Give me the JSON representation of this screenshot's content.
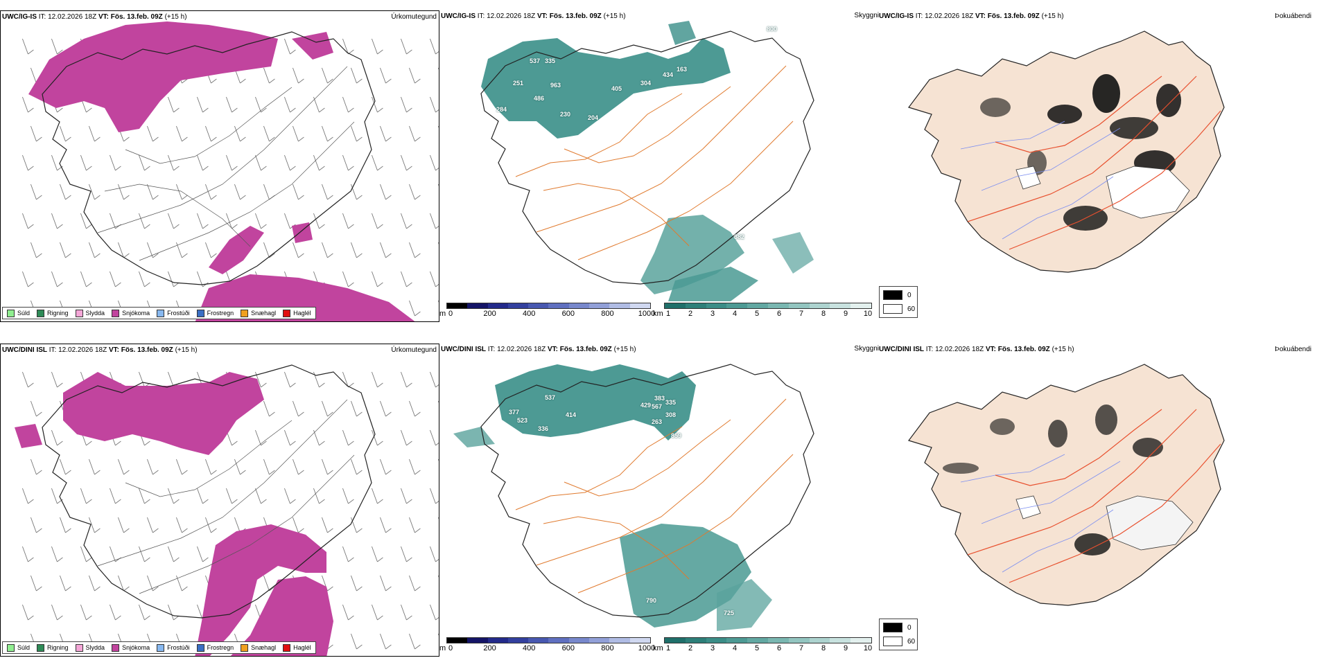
{
  "rows": [
    {
      "model": "UWC/IG-IS",
      "it_label": "IT:",
      "it_value": "12.02.2026 18Z",
      "vt_label": "VT:",
      "vt_value": "Fös. 13.feb. 09Z",
      "lead": "(+15 h)",
      "snow_labels": [
        "537",
        "335",
        "251",
        "486",
        "963",
        "284",
        "230",
        "204",
        "405",
        "304",
        "434",
        "163",
        "382",
        "800"
      ]
    },
    {
      "model": "UWC/DINI ISL",
      "it_label": "IT:",
      "it_value": "12.02.2026 18Z",
      "vt_label": "VT:",
      "vt_value": "Fös. 13.feb. 09Z",
      "lead": "(+15 h)",
      "snow_labels": [
        "537",
        "377",
        "523",
        "414",
        "336",
        "429",
        "383",
        "567",
        "335",
        "308",
        "263",
        "859",
        "790",
        "725"
      ]
    }
  ],
  "panel_labels": {
    "precip_type": "Úrkomutegund",
    "visibility": "Skyggni",
    "fog": "Þokuábendi"
  },
  "precip_legend": [
    {
      "label": "Súld",
      "color": "#90ee90"
    },
    {
      "label": "Rigning",
      "color": "#2e8b57"
    },
    {
      "label": "Slydda",
      "color": "#f4a6d7"
    },
    {
      "label": "Snjókoma",
      "color": "#c1449e"
    },
    {
      "label": "Frostúði",
      "color": "#87b8f0"
    },
    {
      "label": "Frostregn",
      "color": "#3a6fc4"
    },
    {
      "label": "Snæhagl",
      "color": "#f0a020"
    },
    {
      "label": "Haglél",
      "color": "#e01010"
    }
  ],
  "snow_depth_scale": {
    "unit": "m",
    "ticks": [
      "0",
      "200",
      "400",
      "600",
      "800",
      "1000"
    ],
    "colors": [
      "#000000",
      "#141466",
      "#232a8a",
      "#33409e",
      "#4858b0",
      "#6070c0",
      "#7888cc",
      "#92a0d8",
      "#b0bce4",
      "#d0d8f0"
    ]
  },
  "visibility_scale": {
    "unit": "km",
    "ticks": [
      "1",
      "2",
      "3",
      "4",
      "5",
      "6",
      "7",
      "8",
      "9",
      "10"
    ],
    "colors": [
      "#1f6f6a",
      "#2d7f79",
      "#3b8d87",
      "#4d9a94",
      "#62a8a2",
      "#7ab7b1",
      "#93c5c0",
      "#add3cf",
      "#c8e2df",
      "#e3f0ee"
    ]
  },
  "cloud_key": {
    "top": "0",
    "bottom": "60"
  },
  "colors": {
    "snow": "#c1449e",
    "teal": "#3a8f88",
    "land_fog": "#f6e3d3",
    "roads": "#e07a2e",
    "fog_roads": "#e8502e",
    "rivers": "#7c8ef0"
  }
}
